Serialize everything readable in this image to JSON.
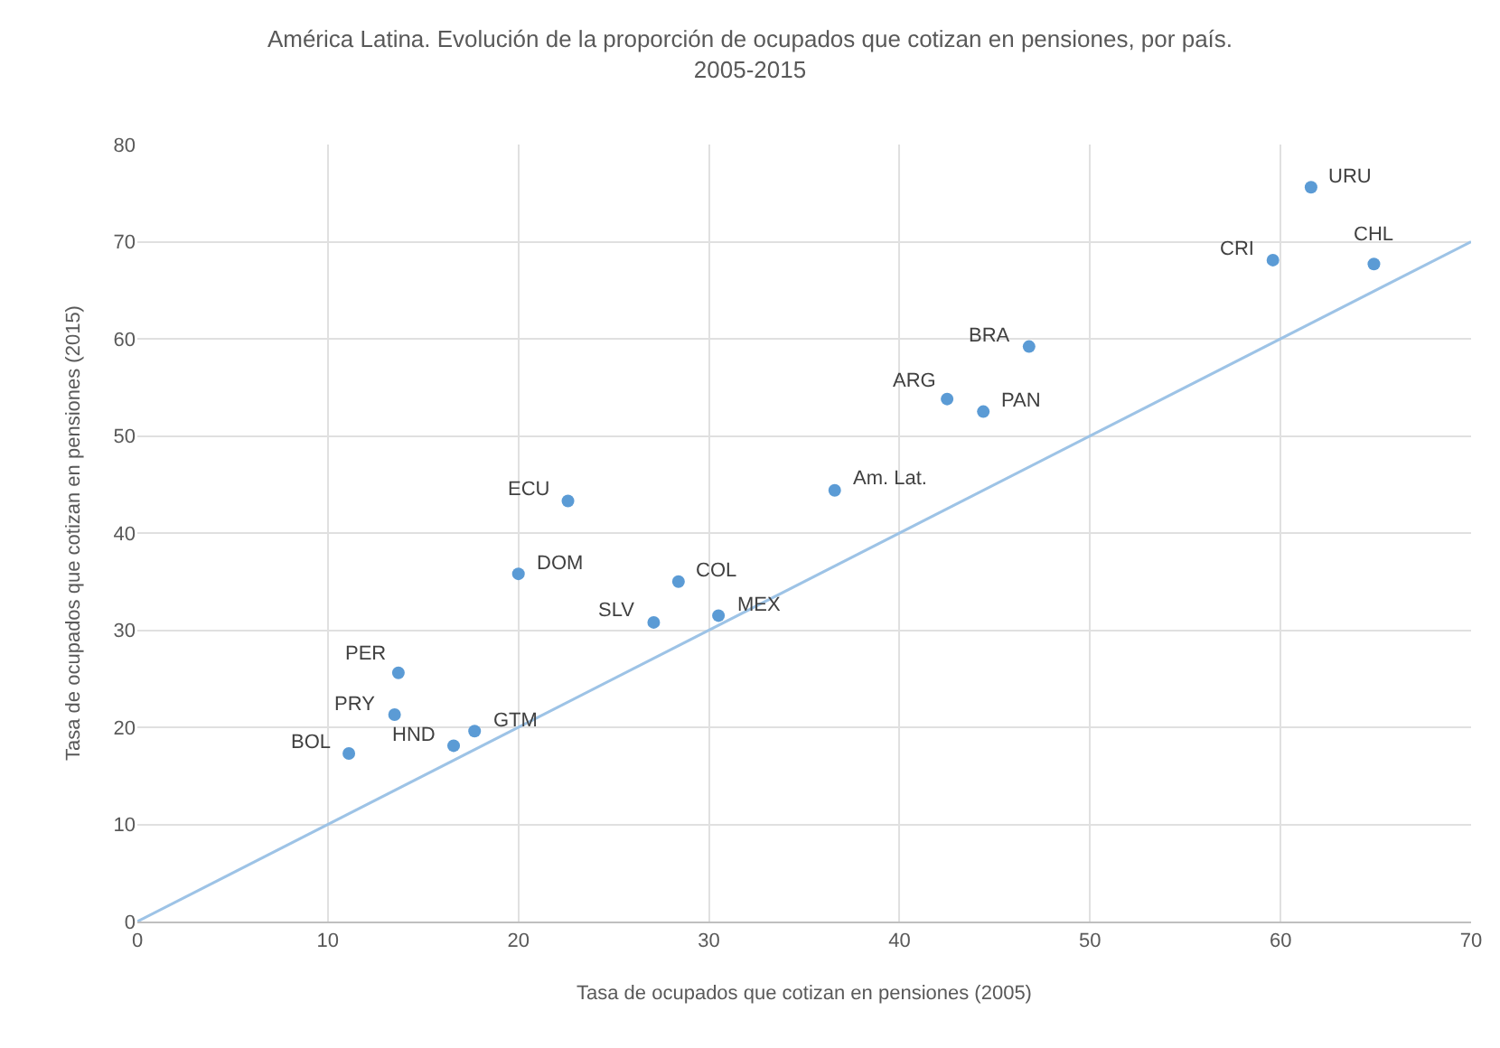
{
  "chart_data": {
    "type": "scatter",
    "title": "América Latina. Evolución de la proporción de ocupados que cotizan en pensiones, por país.\n2005-2015",
    "xlabel": "Tasa de ocupados que cotizan en pensiones (2005)",
    "ylabel": "Tasa de ocupados que cotizan en pensiones (2015)",
    "xlim": [
      0,
      70
    ],
    "xticks": [
      0,
      10,
      20,
      30,
      40,
      50,
      60,
      70
    ],
    "ylim": [
      0,
      80
    ],
    "yticks": [
      0,
      10,
      20,
      30,
      40,
      50,
      60,
      70,
      80
    ],
    "grid": true,
    "series": [
      {
        "marker": "circle",
        "color": "#5b9bd5",
        "x": [
          61.6,
          64.9,
          59.6,
          46.8,
          42.5,
          44.4,
          36.6,
          22.6,
          20.0,
          28.4,
          27.1,
          30.5,
          13.7,
          13.5,
          17.7,
          16.6,
          11.1
        ],
        "values": [
          75.6,
          67.7,
          68.1,
          59.2,
          53.8,
          52.5,
          44.4,
          43.3,
          35.8,
          35.0,
          30.8,
          31.5,
          25.6,
          21.3,
          19.6,
          18.1,
          17.3
        ]
      },
      {
        "type": "line",
        "color": "#9dc3e6",
        "line_style": "solid",
        "x": [
          0,
          70
        ],
        "values": [
          0,
          70
        ]
      }
    ],
    "annotations": [
      {
        "text": "URU",
        "x": 61.6,
        "y": 75.6
      },
      {
        "text": "CHL",
        "x": 64.9,
        "y": 67.7
      },
      {
        "text": "CRI",
        "x": 59.6,
        "y": 68.1
      },
      {
        "text": "BRA",
        "x": 46.8,
        "y": 59.2
      },
      {
        "text": "ARG",
        "x": 42.5,
        "y": 53.8
      },
      {
        "text": "PAN",
        "x": 44.4,
        "y": 52.5
      },
      {
        "text": "Am. Lat.",
        "x": 36.6,
        "y": 44.4
      },
      {
        "text": "ECU",
        "x": 22.6,
        "y": 43.3
      },
      {
        "text": "DOM",
        "x": 20.0,
        "y": 35.8
      },
      {
        "text": "COL",
        "x": 28.4,
        "y": 35.0
      },
      {
        "text": "SLV",
        "x": 27.1,
        "y": 30.8
      },
      {
        "text": "MEX",
        "x": 30.5,
        "y": 31.5
      },
      {
        "text": "PER",
        "x": 13.7,
        "y": 25.6
      },
      {
        "text": "PRY",
        "x": 13.5,
        "y": 21.3
      },
      {
        "text": "GTM",
        "x": 17.7,
        "y": 19.6
      },
      {
        "text": "HND",
        "x": 16.6,
        "y": 18.1
      },
      {
        "text": "BOL",
        "x": 11.1,
        "y": 17.3
      }
    ]
  }
}
